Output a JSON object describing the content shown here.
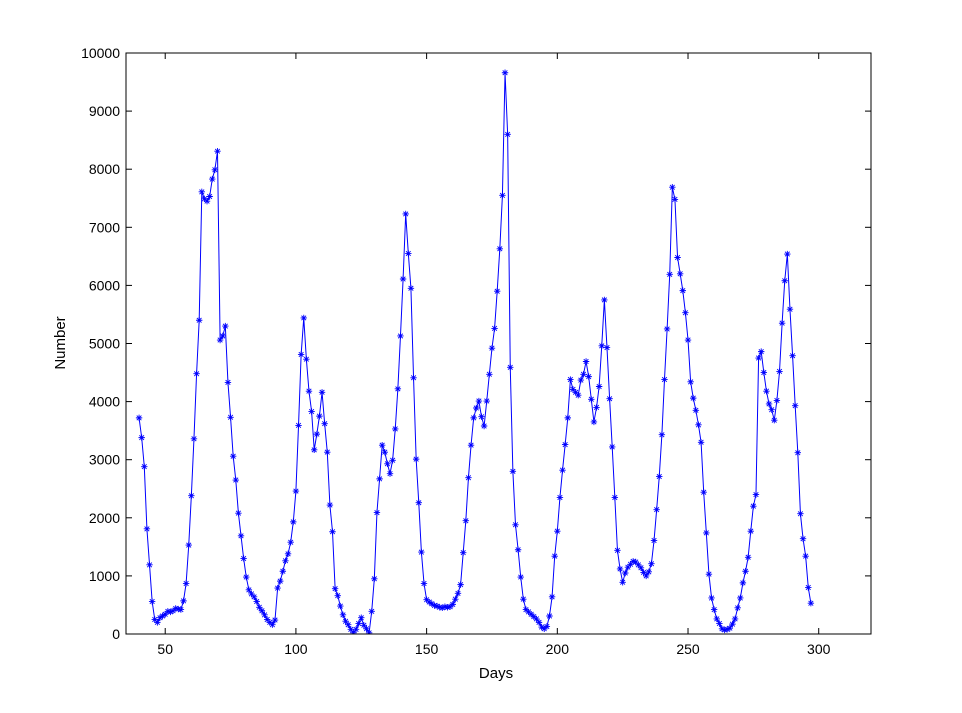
{
  "chart_data": {
    "type": "line",
    "title": "",
    "xlabel": "Days",
    "ylabel": "Number",
    "xlim": [
      35,
      320
    ],
    "ylim": [
      0,
      10000
    ],
    "xticks": [
      50,
      100,
      150,
      200,
      250,
      300
    ],
    "yticks": [
      0,
      1000,
      2000,
      3000,
      4000,
      5000,
      6000,
      7000,
      8000,
      9000,
      10000
    ],
    "grid": false,
    "legend": "none",
    "marker": "asterisk",
    "series_color": "#0000ff",
    "x_start": 40,
    "x_step": 1,
    "series": [
      {
        "values": [
          3720,
          3380,
          2880,
          1810,
          1190,
          560,
          250,
          200,
          280,
          310,
          340,
          390,
          380,
          400,
          440,
          430,
          420,
          570,
          870,
          1530,
          2380,
          3360,
          4480,
          5400,
          7610,
          7490,
          7450,
          7530,
          7830,
          7990,
          8310,
          5060,
          5130,
          5300,
          4330,
          3730,
          3060,
          2650,
          2080,
          1690,
          1300,
          980,
          760,
          690,
          640,
          560,
          460,
          400,
          330,
          250,
          200,
          160,
          240,
          790,
          910,
          1080,
          1260,
          1380,
          1580,
          1930,
          2460,
          3590,
          4810,
          5440,
          4730,
          4180,
          3830,
          3170,
          3440,
          3750,
          4160,
          3620,
          3130,
          2220,
          1760,
          780,
          660,
          480,
          330,
          220,
          160,
          80,
          20,
          80,
          180,
          280,
          150,
          90,
          20,
          390,
          950,
          2090,
          2670,
          3250,
          3130,
          2930,
          2760,
          2990,
          3530,
          4220,
          5130,
          6110,
          7230,
          6550,
          5950,
          4410,
          3010,
          2260,
          1410,
          870,
          590,
          550,
          520,
          490,
          480,
          460,
          450,
          470,
          460,
          470,
          510,
          600,
          700,
          850,
          1400,
          1950,
          2690,
          3250,
          3720,
          3890,
          4010,
          3740,
          3580,
          4010,
          4470,
          4920,
          5260,
          5900,
          6630,
          7550,
          9660,
          8600,
          4590,
          2800,
          1880,
          1450,
          980,
          600,
          420,
          380,
          340,
          300,
          260,
          200,
          120,
          90,
          130,
          310,
          640,
          1340,
          1770,
          2350,
          2820,
          3260,
          3720,
          4380,
          4210,
          4160,
          4110,
          4370,
          4470,
          4690,
          4430,
          4040,
          3650,
          3900,
          4260,
          4960,
          5750,
          4930,
          4050,
          3220,
          2350,
          1440,
          1120,
          890,
          1050,
          1150,
          1200,
          1250,
          1240,
          1190,
          1140,
          1060,
          1000,
          1070,
          1210,
          1610,
          2140,
          2710,
          3430,
          4380,
          5250,
          6190,
          7690,
          7480,
          6480,
          6200,
          5910,
          5530,
          5060,
          4340,
          4060,
          3850,
          3600,
          3300,
          2440,
          1740,
          1030,
          620,
          420,
          260,
          180,
          90,
          70,
          80,
          100,
          170,
          260,
          450,
          620,
          880,
          1080,
          1320,
          1770,
          2200,
          2400,
          4750,
          4860,
          4500,
          4180,
          3960,
          3860,
          3680,
          4020,
          4520,
          5350,
          6080,
          6540,
          5590,
          4790,
          3930,
          3120,
          2070,
          1640,
          1340,
          800,
          530
        ]
      }
    ]
  }
}
